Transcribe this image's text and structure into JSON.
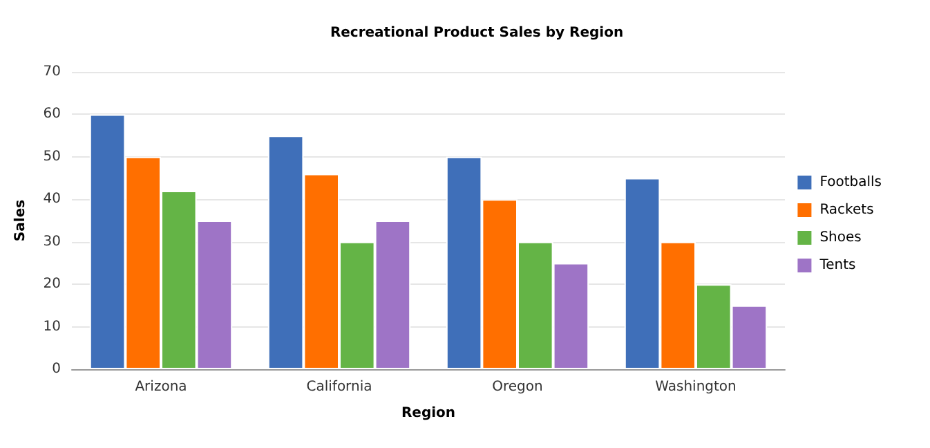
{
  "chart_data": {
    "type": "bar",
    "title": "Recreational Product Sales by Region",
    "xlabel": "Region",
    "ylabel": "Sales",
    "categories": [
      "Arizona",
      "California",
      "Oregon",
      "Washington"
    ],
    "series": [
      {
        "name": "Footballs",
        "color": "#3f6fb9",
        "values": [
          60,
          55,
          50,
          45
        ]
      },
      {
        "name": "Rackets",
        "color": "#ff6f00",
        "values": [
          50,
          46,
          40,
          30
        ]
      },
      {
        "name": "Shoes",
        "color": "#64b446",
        "values": [
          42,
          30,
          30,
          20
        ]
      },
      {
        "name": "Tents",
        "color": "#9e74c6",
        "values": [
          35,
          35,
          25,
          15
        ]
      }
    ],
    "ylim": [
      0,
      70
    ],
    "yticks": [
      0,
      10,
      20,
      30,
      40,
      50,
      60,
      70
    ],
    "grid": "y",
    "legend": "right"
  }
}
